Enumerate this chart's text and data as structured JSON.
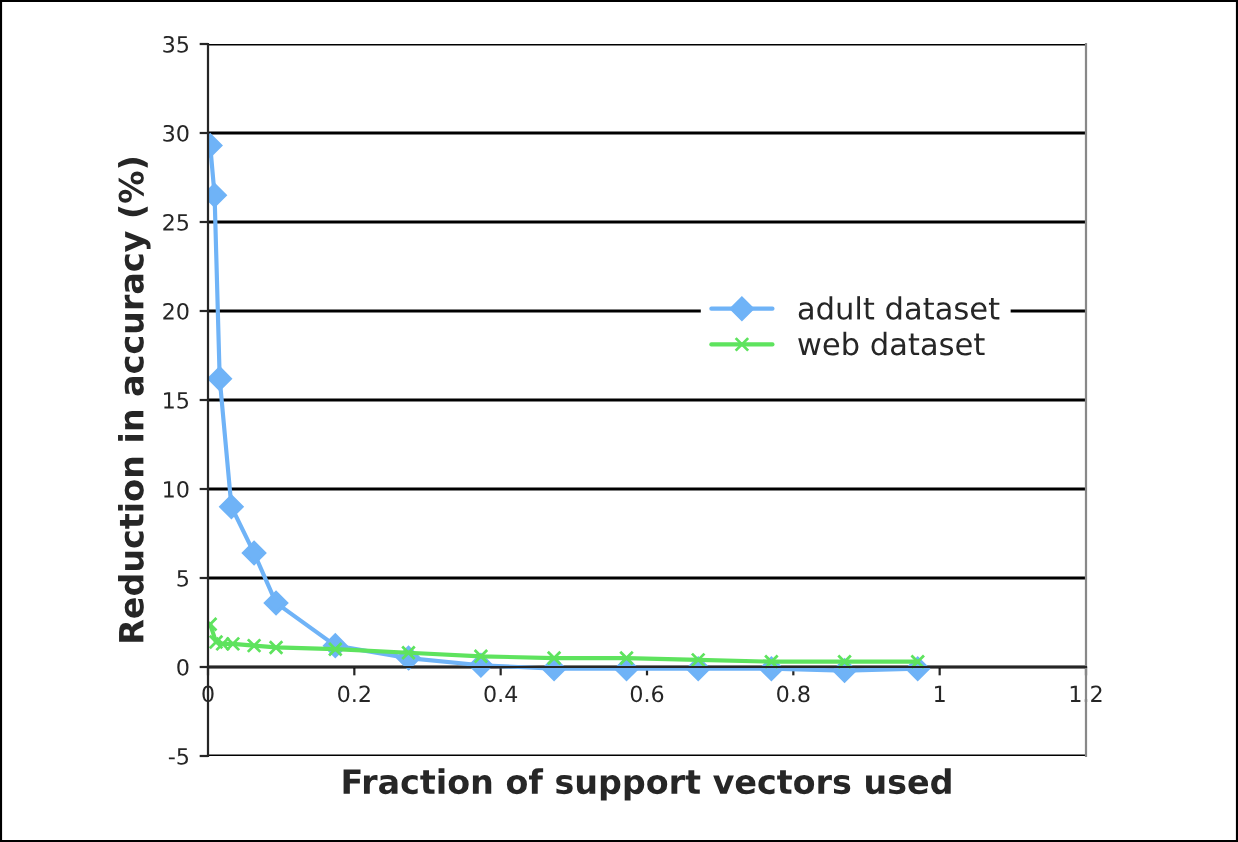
{
  "chart_data": {
    "type": "line",
    "xlabel": "Fraction of support vectors used",
    "ylabel": "Reduction in accuracy (%)",
    "xlim": [
      0,
      1.2
    ],
    "xticks": [
      0,
      0.2,
      0.4,
      0.6,
      0.8,
      1,
      1.2
    ],
    "ylim": [
      -5,
      35
    ],
    "yticks": [
      -5,
      0,
      5,
      10,
      15,
      20,
      25,
      30,
      35
    ],
    "grid": "y",
    "legend": "right",
    "series": [
      {
        "name": "adult dataset",
        "color": "#6fb3f7",
        "marker": "diamond",
        "x": [
          0.003,
          0.009,
          0.016,
          0.032,
          0.063,
          0.093,
          0.174,
          0.274,
          0.373,
          0.473,
          0.572,
          0.67,
          0.77,
          0.87,
          0.97
        ],
        "values": [
          29.3,
          26.5,
          16.2,
          9.0,
          6.4,
          3.6,
          1.2,
          0.5,
          0.1,
          -0.1,
          -0.1,
          -0.1,
          -0.1,
          -0.2,
          -0.1
        ]
      },
      {
        "name": "web dataset",
        "color": "#5ee35e",
        "marker": "cross",
        "x": [
          0.003,
          0.011,
          0.02,
          0.034,
          0.063,
          0.093,
          0.174,
          0.274,
          0.373,
          0.473,
          0.572,
          0.67,
          0.77,
          0.87,
          0.97
        ],
        "values": [
          2.4,
          1.4,
          1.3,
          1.3,
          1.2,
          1.1,
          1.0,
          0.8,
          0.6,
          0.5,
          0.5,
          0.4,
          0.3,
          0.3,
          0.3
        ]
      }
    ]
  }
}
